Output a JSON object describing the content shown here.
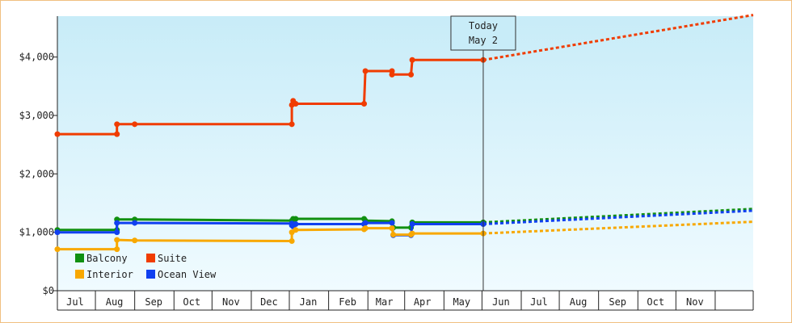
{
  "chart_data": {
    "type": "line",
    "title": "",
    "xlabel": "",
    "ylabel": "",
    "ylim": [
      0,
      4700
    ],
    "yticks": [
      {
        "value": 0,
        "label": "$0"
      },
      {
        "value": 1000,
        "label": "$1,000"
      },
      {
        "value": 2000,
        "label": "$2,000"
      },
      {
        "value": 3000,
        "label": "$3,000"
      },
      {
        "value": 4000,
        "label": "$4,000"
      }
    ],
    "x_range": [
      "2011-06-01",
      "2012-12-01"
    ],
    "month_labels": [
      {
        "date": "2011-06-15",
        "label": "Jul"
      },
      {
        "date": "2011-07-16",
        "label": "Aug"
      },
      {
        "date": "2011-08-16",
        "label": "Sep"
      },
      {
        "date": "2011-09-15",
        "label": "Oct"
      },
      {
        "date": "2011-10-16",
        "label": "Nov"
      },
      {
        "date": "2011-11-15",
        "label": "Dec"
      },
      {
        "date": "2011-12-16",
        "label": "Jan"
      },
      {
        "date": "2012-01-16",
        "label": "Feb"
      },
      {
        "date": "2012-02-14",
        "label": "Mar"
      },
      {
        "date": "2012-03-15",
        "label": "Apr"
      },
      {
        "date": "2012-04-15",
        "label": "May"
      },
      {
        "date": "2012-05-16",
        "label": "Jun"
      },
      {
        "date": "2012-06-15",
        "label": "Jul"
      },
      {
        "date": "2012-07-16",
        "label": "Aug"
      },
      {
        "date": "2012-08-16",
        "label": "Sep"
      },
      {
        "date": "2012-09-15",
        "label": "Oct"
      },
      {
        "date": "2012-10-16",
        "label": "Nov"
      }
    ],
    "month_boundaries": [
      "2011-06-01",
      "2011-07-01",
      "2011-08-01",
      "2011-09-01",
      "2011-10-01",
      "2011-11-01",
      "2011-12-01",
      "2012-01-01",
      "2012-02-01",
      "2012-03-01",
      "2012-04-01",
      "2012-05-01",
      "2012-06-01",
      "2012-07-01",
      "2012-08-01",
      "2012-09-01",
      "2012-10-01",
      "2012-11-01",
      "2012-12-01"
    ],
    "today": {
      "date": "2012-05-02",
      "label_line1": "Today",
      "label_line2": "May 2"
    },
    "legend_placement": "bottom-left",
    "grid": false,
    "background": {
      "top": "#c8ecf8",
      "bottom": "#f0fbff"
    },
    "series": [
      {
        "name": "Suite",
        "color": "#f03c00",
        "points": [
          [
            "2011-06-01",
            2680
          ],
          [
            "2011-07-18",
            2680
          ],
          [
            "2011-07-18",
            2850
          ],
          [
            "2011-08-01",
            2850
          ],
          [
            "2011-12-03",
            2850
          ],
          [
            "2011-12-03",
            3180
          ],
          [
            "2011-12-04",
            3250
          ],
          [
            "2011-12-06",
            3200
          ],
          [
            "2012-01-29",
            3200
          ],
          [
            "2012-01-30",
            3760
          ],
          [
            "2012-02-20",
            3760
          ],
          [
            "2012-02-20",
            3700
          ],
          [
            "2012-03-06",
            3700
          ],
          [
            "2012-03-07",
            3950
          ],
          [
            "2012-05-02",
            3950
          ]
        ],
        "projection": [
          [
            "2012-05-02",
            3950
          ],
          [
            "2012-12-01",
            4720
          ]
        ]
      },
      {
        "name": "Balcony",
        "color": "#109010",
        "points": [
          [
            "2011-06-01",
            1040
          ],
          [
            "2011-07-18",
            1040
          ],
          [
            "2011-07-18",
            1220
          ],
          [
            "2011-08-01",
            1220
          ],
          [
            "2011-12-03",
            1200
          ],
          [
            "2011-12-04",
            1230
          ],
          [
            "2011-12-06",
            1230
          ],
          [
            "2012-01-29",
            1230
          ],
          [
            "2012-01-30",
            1200
          ],
          [
            "2012-02-20",
            1190
          ],
          [
            "2012-02-21",
            1080
          ],
          [
            "2012-03-06",
            1080
          ],
          [
            "2012-03-07",
            1170
          ],
          [
            "2012-05-02",
            1170
          ]
        ],
        "projection": [
          [
            "2012-05-02",
            1170
          ],
          [
            "2012-12-01",
            1400
          ]
        ]
      },
      {
        "name": "Ocean View",
        "color": "#1040f0",
        "points": [
          [
            "2011-06-01",
            1000
          ],
          [
            "2011-07-18",
            1000
          ],
          [
            "2011-07-18",
            1160
          ],
          [
            "2011-08-01",
            1160
          ],
          [
            "2011-12-03",
            1150
          ],
          [
            "2011-12-03",
            1120
          ],
          [
            "2011-12-04",
            1100
          ],
          [
            "2011-12-06",
            1140
          ],
          [
            "2012-01-29",
            1140
          ],
          [
            "2012-01-30",
            1160
          ],
          [
            "2012-02-20",
            1160
          ],
          [
            "2012-02-21",
            950
          ],
          [
            "2012-03-06",
            950
          ],
          [
            "2012-03-07",
            1140
          ],
          [
            "2012-05-02",
            1140
          ]
        ],
        "projection": [
          [
            "2012-05-02",
            1140
          ],
          [
            "2012-12-01",
            1370
          ]
        ]
      },
      {
        "name": "Interior",
        "color": "#f8a800",
        "points": [
          [
            "2011-06-01",
            710
          ],
          [
            "2011-07-18",
            710
          ],
          [
            "2011-07-18",
            870
          ],
          [
            "2011-08-01",
            860
          ],
          [
            "2011-12-03",
            850
          ],
          [
            "2011-12-03",
            1000
          ],
          [
            "2011-12-06",
            1040
          ],
          [
            "2012-01-29",
            1050
          ],
          [
            "2012-01-30",
            1070
          ],
          [
            "2012-02-20",
            1070
          ],
          [
            "2012-02-21",
            960
          ],
          [
            "2012-03-06",
            960
          ],
          [
            "2012-03-07",
            980
          ],
          [
            "2012-05-02",
            980
          ]
        ],
        "projection": [
          [
            "2012-05-02",
            980
          ],
          [
            "2012-12-01",
            1180
          ]
        ]
      }
    ],
    "legend": [
      {
        "name": "Balcony",
        "color": "#109010"
      },
      {
        "name": "Suite",
        "color": "#f03c00"
      },
      {
        "name": "Interior",
        "color": "#f8a800"
      },
      {
        "name": "Ocean View",
        "color": "#1040f0"
      }
    ]
  }
}
